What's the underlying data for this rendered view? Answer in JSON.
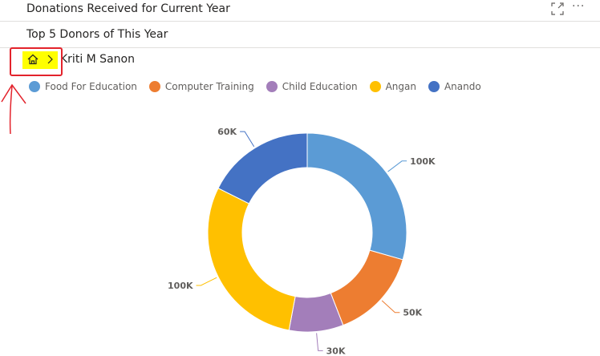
{
  "header": {
    "title": "Donations Received for Current Year",
    "focus_icon": "focus-mode-icon",
    "more_label": "···"
  },
  "subheader": {
    "title": "Top 5 Donors of This Year"
  },
  "breadcrumb": {
    "home_icon": "home-icon",
    "chevron_icon": "chevron-right-icon",
    "current": "Kriti M Sanon"
  },
  "annotation": {
    "color": "#e3232c"
  },
  "chart_data": {
    "type": "pie",
    "variant": "donut",
    "categories": [
      "Food For Education",
      "Computer Training",
      "Child Education",
      "Angan",
      "Anando"
    ],
    "values": [
      100000,
      50000,
      30000,
      100000,
      60000
    ],
    "data_labels": [
      "100K",
      "50K",
      "30K",
      "100K",
      "60K"
    ],
    "colors": [
      "#5b9bd5",
      "#ed7d31",
      "#a37eba",
      "#ffc000",
      "#4472c4"
    ],
    "legend_position": "top-left",
    "title": ""
  }
}
